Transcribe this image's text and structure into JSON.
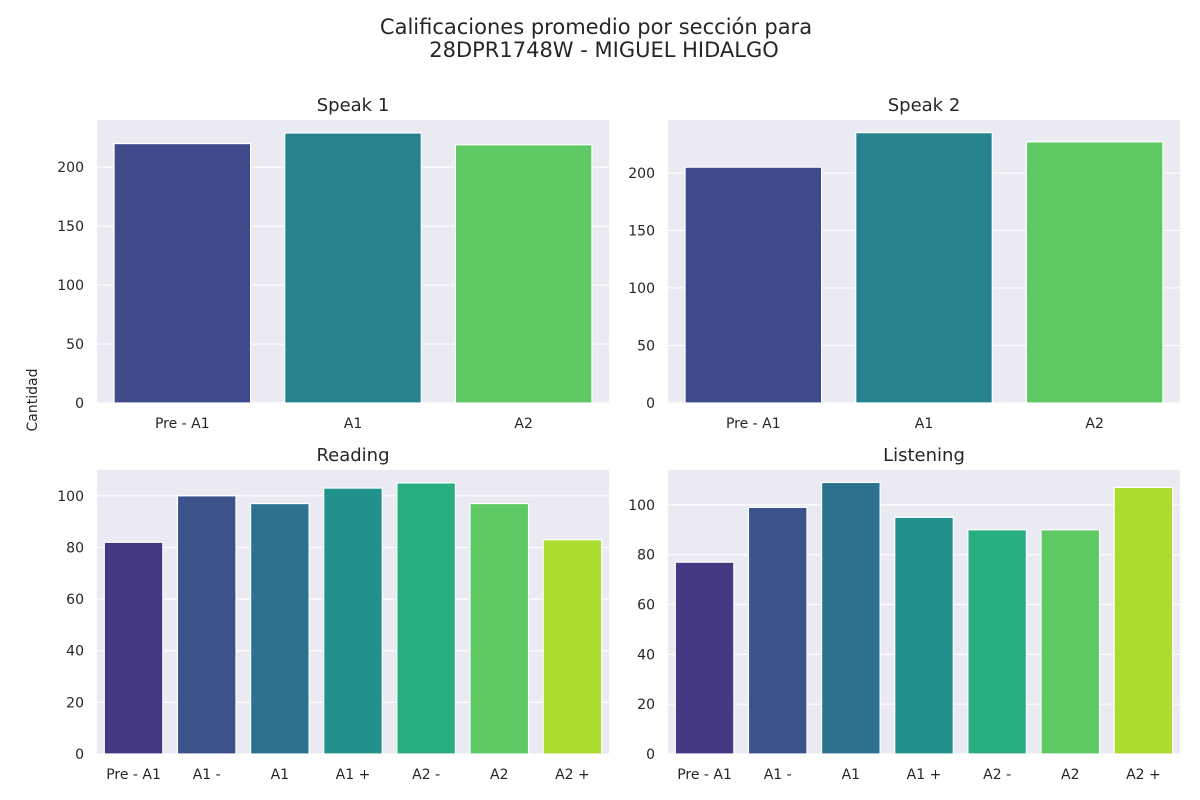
{
  "title_lines": [
    "Calificaciones promedio por sección para",
    "28DPR1748W - MIGUEL HIDALGO"
  ],
  "shared_ylabel": "Cantidad",
  "palette": {
    "3": [
      "#3e4a89",
      "#26828e",
      "#5ec962"
    ],
    "7": [
      "#443983",
      "#3b528b",
      "#2c728e",
      "#21918c",
      "#28ae80",
      "#5ec962",
      "#addc30"
    ]
  },
  "chart_data": [
    {
      "type": "bar",
      "title": "Speak 1",
      "categories": [
        "Pre - A1",
        "A1",
        "A2"
      ],
      "values": [
        220,
        229,
        219
      ],
      "ylim": [
        0,
        240
      ],
      "yticks": [
        0,
        50,
        100,
        150,
        200
      ],
      "xlabel": "",
      "ylabel": "Cantidad"
    },
    {
      "type": "bar",
      "title": "Speak 2",
      "categories": [
        "Pre - A1",
        "A1",
        "A2"
      ],
      "values": [
        205,
        235,
        227
      ],
      "ylim": [
        0,
        246
      ],
      "yticks": [
        0,
        50,
        100,
        150,
        200
      ],
      "xlabel": "",
      "ylabel": ""
    },
    {
      "type": "bar",
      "title": "Reading",
      "categories": [
        "Pre - A1",
        "A1 -",
        "A1",
        "A1 +",
        "A2 -",
        "A2",
        "A2 +"
      ],
      "values": [
        82,
        100,
        97,
        103,
        105,
        97,
        83
      ],
      "ylim": [
        0,
        110
      ],
      "yticks": [
        0,
        20,
        40,
        60,
        80,
        100
      ],
      "xlabel": "",
      "ylabel": "Cantidad"
    },
    {
      "type": "bar",
      "title": "Listening",
      "categories": [
        "Pre - A1",
        "A1 -",
        "A1",
        "A1 +",
        "A2 -",
        "A2",
        "A2 +"
      ],
      "values": [
        77,
        99,
        109,
        95,
        90,
        90,
        107
      ],
      "ylim": [
        0,
        114
      ],
      "yticks": [
        0,
        20,
        40,
        60,
        80,
        100
      ],
      "xlabel": "",
      "ylabel": ""
    }
  ]
}
